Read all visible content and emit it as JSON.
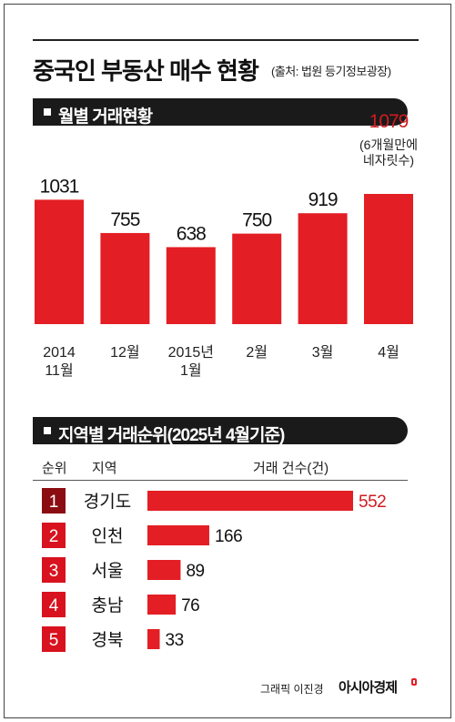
{
  "title": "중국인 부동산 매수 현황",
  "source": "(출처: 법원 등기정보광장)",
  "credit": "그래픽 이진경",
  "brand": "아시아경제",
  "colors": {
    "bar": "#e31e24",
    "rank_box": "#d8121f",
    "rank_box_first": "#8b0d12",
    "highlight_text": "#d01b21"
  },
  "chart_data": [
    {
      "type": "bar",
      "title": "월별 거래현황",
      "categories": [
        "2014\n11월",
        "12월",
        "2015년\n1월",
        "2월",
        "3월",
        "4월"
      ],
      "values": [
        1031,
        755,
        638,
        750,
        919,
        1079
      ],
      "highlight_index": 5,
      "annotation": "(6개월만에\n네자릿수)",
      "xlabel": "",
      "ylabel": "",
      "ylim": [
        0,
        1100
      ],
      "grid": false,
      "legend": "none"
    },
    {
      "type": "bar",
      "orientation": "horizontal",
      "title": "지역별 거래순위(2025년 4월기준)",
      "column_headers": {
        "rank": "순위",
        "region": "지역",
        "count": "거래 건수(건)"
      },
      "ranks": [
        "1",
        "2",
        "3",
        "4",
        "5"
      ],
      "categories": [
        "경기도",
        "인천",
        "서울",
        "충남",
        "경북"
      ],
      "values": [
        552,
        166,
        89,
        76,
        33
      ],
      "highlight_index": 0,
      "grid": false,
      "legend": "none"
    }
  ]
}
